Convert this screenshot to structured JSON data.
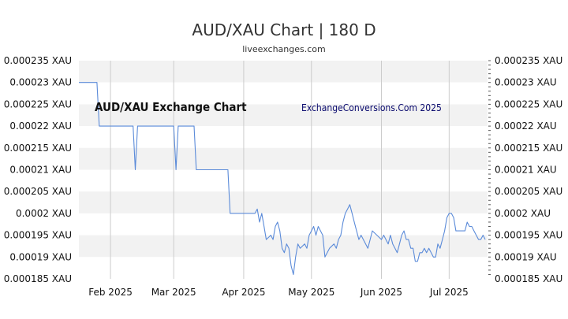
{
  "header": {
    "title": "AUD/XAU Chart | 180 D",
    "subtitle": "liveexchanges.com"
  },
  "chart_data": {
    "type": "line",
    "inner_title": "AUD/XAU Exchange Chart",
    "watermark": "ExchangeConversions.Com 2025",
    "ylim": [
      0.000185,
      0.000235
    ],
    "grid": true,
    "line_color": "#5b8bd9",
    "y_ticks": [
      {
        "value": 0.000235,
        "label": "0.000235 XAU"
      },
      {
        "value": 0.00023,
        "label": "0.00023 XAU"
      },
      {
        "value": 0.000225,
        "label": "0.000225 XAU"
      },
      {
        "value": 0.00022,
        "label": "0.00022 XAU"
      },
      {
        "value": 0.000215,
        "label": "0.000215 XAU"
      },
      {
        "value": 0.00021,
        "label": "0.00021 XAU"
      },
      {
        "value": 0.000205,
        "label": "0.000205 XAU"
      },
      {
        "value": 0.0002,
        "label": "0.0002 XAU"
      },
      {
        "value": 0.000195,
        "label": "0.000195 XAU"
      },
      {
        "value": 0.00019,
        "label": "0.00019 XAU"
      },
      {
        "value": 0.000185,
        "label": "0.000185 XAU"
      }
    ],
    "right_y_ticks": [
      {
        "value": 0.000235,
        "label": "0.000235 XAU"
      },
      {
        "value": 0.00023,
        "label": "0.00023 XAU"
      },
      {
        "value": 0.000225,
        "label": "0.000225 XAU"
      },
      {
        "value": 0.00022,
        "label": "0.00022 XAU"
      },
      {
        "value": 0.000215,
        "label": "0.000215 XAU"
      },
      {
        "value": 0.00021,
        "label": "0.00021 XAU"
      },
      {
        "value": 0.000205,
        "label": "0.000205 XAU"
      },
      {
        "value": 0.0002,
        "label": "0.0002 XAU"
      },
      {
        "value": 0.000195,
        "label": "0.000195 XAU"
      },
      {
        "value": 0.00019,
        "label": "0.00019 XAU"
      },
      {
        "value": 0.000185,
        "label": "0.000185 XAU"
      }
    ],
    "x_domain": [
      "2025-01-18",
      "2025-07-18"
    ],
    "x_ticks": [
      {
        "date": "2025-02-01",
        "label": "Feb 2025"
      },
      {
        "date": "2025-03-01",
        "label": "Mar 2025"
      },
      {
        "date": "2025-04-01",
        "label": "Apr 2025"
      },
      {
        "date": "2025-05-01",
        "label": "May 2025"
      },
      {
        "date": "2025-06-01",
        "label": "Jun 2025"
      },
      {
        "date": "2025-07-01",
        "label": "Jul 2025"
      }
    ],
    "series": [
      {
        "points": [
          [
            "2025-01-18",
            0.00023
          ],
          [
            "2025-01-26",
            0.00023
          ],
          [
            "2025-01-27",
            0.00022
          ],
          [
            "2025-02-11",
            0.00022
          ],
          [
            "2025-02-12",
            0.00021
          ],
          [
            "2025-02-13",
            0.00022
          ],
          [
            "2025-03-01",
            0.00022
          ],
          [
            "2025-03-02",
            0.00021
          ],
          [
            "2025-03-03",
            0.00022
          ],
          [
            "2025-03-10",
            0.00022
          ],
          [
            "2025-03-11",
            0.00021
          ],
          [
            "2025-03-25",
            0.00021
          ],
          [
            "2025-03-26",
            0.0002
          ],
          [
            "2025-04-06",
            0.0002
          ],
          [
            "2025-04-07",
            0.000201
          ],
          [
            "2025-04-08",
            0.000198
          ],
          [
            "2025-04-09",
            0.0002
          ],
          [
            "2025-04-10",
            0.000197
          ],
          [
            "2025-04-11",
            0.000194
          ],
          [
            "2025-04-13",
            0.000195
          ],
          [
            "2025-04-14",
            0.000194
          ],
          [
            "2025-04-15",
            0.000197
          ],
          [
            "2025-04-16",
            0.000198
          ],
          [
            "2025-04-17",
            0.000196
          ],
          [
            "2025-04-18",
            0.000192
          ],
          [
            "2025-04-19",
            0.000191
          ],
          [
            "2025-04-20",
            0.000193
          ],
          [
            "2025-04-21",
            0.000192
          ],
          [
            "2025-04-22",
            0.000188
          ],
          [
            "2025-04-23",
            0.000186
          ],
          [
            "2025-04-24",
            0.00019
          ],
          [
            "2025-04-25",
            0.000193
          ],
          [
            "2025-04-26",
            0.000192
          ],
          [
            "2025-04-28",
            0.000193
          ],
          [
            "2025-04-29",
            0.000192
          ],
          [
            "2025-04-30",
            0.000195
          ],
          [
            "2025-05-01",
            0.000196
          ],
          [
            "2025-05-02",
            0.000197
          ],
          [
            "2025-05-03",
            0.000195
          ],
          [
            "2025-05-04",
            0.000197
          ],
          [
            "2025-05-06",
            0.000195
          ],
          [
            "2025-05-07",
            0.00019
          ],
          [
            "2025-05-08",
            0.000191
          ],
          [
            "2025-05-09",
            0.000192
          ],
          [
            "2025-05-11",
            0.000193
          ],
          [
            "2025-05-12",
            0.000192
          ],
          [
            "2025-05-13",
            0.000194
          ],
          [
            "2025-05-14",
            0.000195
          ],
          [
            "2025-05-15",
            0.000198
          ],
          [
            "2025-05-16",
            0.0002
          ],
          [
            "2025-05-17",
            0.000201
          ],
          [
            "2025-05-18",
            0.000202
          ],
          [
            "2025-05-19",
            0.0002
          ],
          [
            "2025-05-20",
            0.000198
          ],
          [
            "2025-05-21",
            0.000196
          ],
          [
            "2025-05-22",
            0.000194
          ],
          [
            "2025-05-23",
            0.000195
          ],
          [
            "2025-05-25",
            0.000193
          ],
          [
            "2025-05-26",
            0.000192
          ],
          [
            "2025-05-27",
            0.000194
          ],
          [
            "2025-05-28",
            0.000196
          ],
          [
            "2025-05-30",
            0.000195
          ],
          [
            "2025-06-01",
            0.000194
          ],
          [
            "2025-06-02",
            0.000195
          ],
          [
            "2025-06-03",
            0.000194
          ],
          [
            "2025-06-04",
            0.000193
          ],
          [
            "2025-06-05",
            0.000195
          ],
          [
            "2025-06-06",
            0.000193
          ],
          [
            "2025-06-07",
            0.000192
          ],
          [
            "2025-06-08",
            0.000191
          ],
          [
            "2025-06-09",
            0.000193
          ],
          [
            "2025-06-10",
            0.000195
          ],
          [
            "2025-06-11",
            0.000196
          ],
          [
            "2025-06-12",
            0.000194
          ],
          [
            "2025-06-13",
            0.000194
          ],
          [
            "2025-06-14",
            0.000192
          ],
          [
            "2025-06-15",
            0.000192
          ],
          [
            "2025-06-16",
            0.000189
          ],
          [
            "2025-06-17",
            0.000189
          ],
          [
            "2025-06-18",
            0.000191
          ],
          [
            "2025-06-19",
            0.000191
          ],
          [
            "2025-06-20",
            0.000192
          ],
          [
            "2025-06-21",
            0.000191
          ],
          [
            "2025-06-22",
            0.000192
          ],
          [
            "2025-06-23",
            0.000191
          ],
          [
            "2025-06-24",
            0.00019
          ],
          [
            "2025-06-25",
            0.00019
          ],
          [
            "2025-06-26",
            0.000193
          ],
          [
            "2025-06-27",
            0.000192
          ],
          [
            "2025-06-28",
            0.000194
          ],
          [
            "2025-06-29",
            0.000196
          ],
          [
            "2025-06-30",
            0.000199
          ],
          [
            "2025-07-01",
            0.0002
          ],
          [
            "2025-07-02",
            0.0002
          ],
          [
            "2025-07-03",
            0.000199
          ],
          [
            "2025-07-04",
            0.000196
          ],
          [
            "2025-07-05",
            0.000196
          ],
          [
            "2025-07-07",
            0.000196
          ],
          [
            "2025-07-08",
            0.000196
          ],
          [
            "2025-07-09",
            0.000198
          ],
          [
            "2025-07-10",
            0.000197
          ],
          [
            "2025-07-11",
            0.000197
          ],
          [
            "2025-07-12",
            0.000196
          ],
          [
            "2025-07-13",
            0.000195
          ],
          [
            "2025-07-14",
            0.000194
          ],
          [
            "2025-07-15",
            0.000194
          ],
          [
            "2025-07-16",
            0.000195
          ],
          [
            "2025-07-17",
            0.000194
          ]
        ]
      }
    ]
  }
}
